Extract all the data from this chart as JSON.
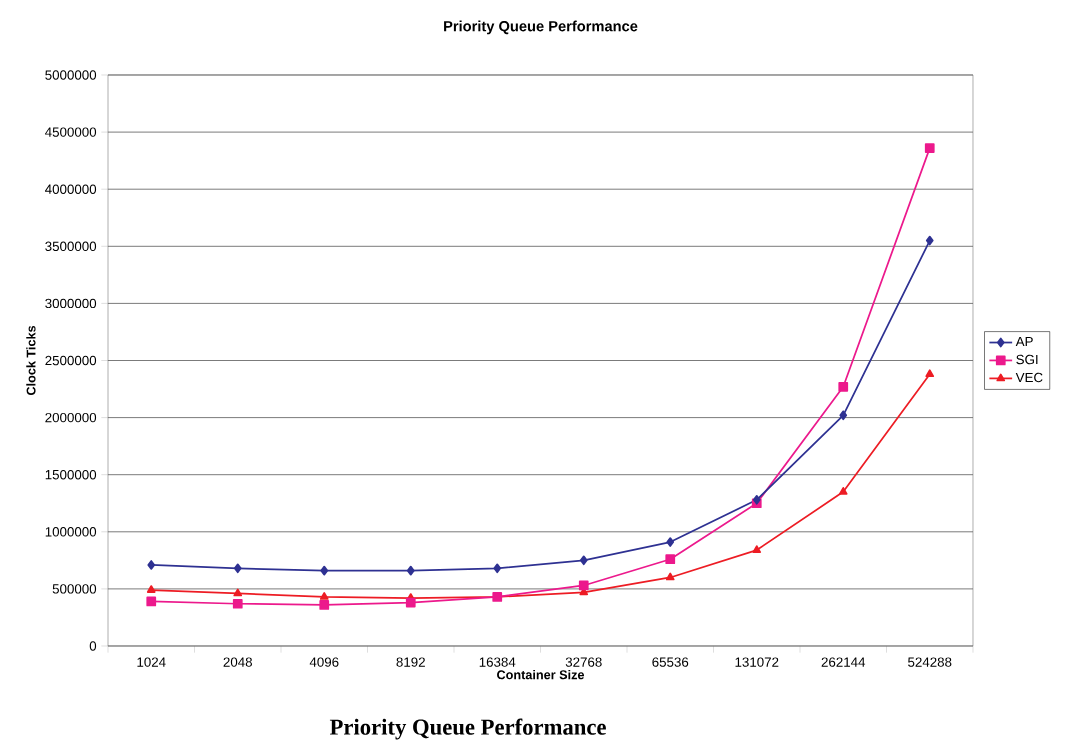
{
  "chart_data": {
    "type": "line",
    "title": "Priority Queue Performance",
    "xlabel": "Container Size",
    "ylabel": "Clock Ticks",
    "categories": [
      "1024",
      "2048",
      "4096",
      "8192",
      "16384",
      "32768",
      "65536",
      "131072",
      "262144",
      "524288"
    ],
    "series": [
      {
        "name": "AP",
        "color": "#2e3192",
        "marker": "diamond",
        "values": [
          710000,
          680000,
          660000,
          660000,
          680000,
          750000,
          910000,
          1280000,
          2020000,
          3550000
        ]
      },
      {
        "name": "SGI",
        "color": "#ec198c",
        "marker": "square",
        "values": [
          390000,
          370000,
          360000,
          380000,
          430000,
          530000,
          760000,
          1250000,
          2270000,
          4360000
        ]
      },
      {
        "name": "VEC",
        "color": "#ed1c24",
        "marker": "triangle",
        "values": [
          490000,
          460000,
          430000,
          420000,
          430000,
          470000,
          600000,
          840000,
          1350000,
          2380000
        ]
      }
    ],
    "ylim": [
      0,
      5000000
    ],
    "yticks": [
      0,
      500000,
      1000000,
      1500000,
      2000000,
      2500000,
      3000000,
      3500000,
      4000000,
      4500000,
      5000000
    ],
    "grid": "y",
    "legend": "right",
    "line_style": "solid",
    "annotations": [
      "Priority Queue Performance"
    ]
  }
}
